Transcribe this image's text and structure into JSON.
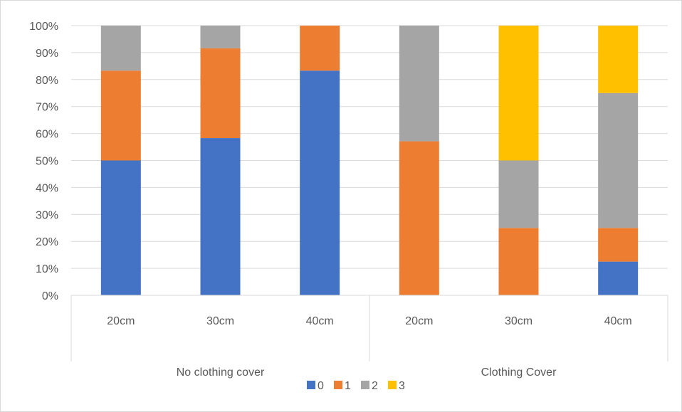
{
  "chart_data": {
    "type": "bar",
    "stacked": true,
    "percent_stacked": true,
    "groups": [
      {
        "label": "No clothing cover",
        "categories": [
          "20cm",
          "30cm",
          "40cm"
        ]
      },
      {
        "label": "Clothing Cover",
        "categories": [
          "20cm",
          "30cm",
          "40cm"
        ]
      }
    ],
    "categories": [
      "20cm",
      "30cm",
      "40cm",
      "20cm",
      "30cm",
      "40cm"
    ],
    "series": [
      {
        "name": "0",
        "color": "#4472C4",
        "values": [
          50,
          58.3,
          83.3,
          0,
          0,
          12.5
        ]
      },
      {
        "name": "1",
        "color": "#ED7D31",
        "values": [
          33.3,
          33.3,
          16.7,
          57.1,
          25,
          12.5
        ]
      },
      {
        "name": "2",
        "color": "#A5A5A5",
        "values": [
          16.7,
          8.4,
          0,
          42.9,
          25,
          50
        ]
      },
      {
        "name": "3",
        "color": "#FFC000",
        "values": [
          0,
          0,
          0,
          0,
          50,
          25
        ]
      }
    ],
    "ylim": [
      0,
      100
    ],
    "yticks": [
      "0%",
      "10%",
      "20%",
      "30%",
      "40%",
      "50%",
      "60%",
      "70%",
      "80%",
      "90%",
      "100%"
    ],
    "grid": true,
    "legend": "bottom",
    "title": "",
    "xlabel": "",
    "ylabel": ""
  }
}
